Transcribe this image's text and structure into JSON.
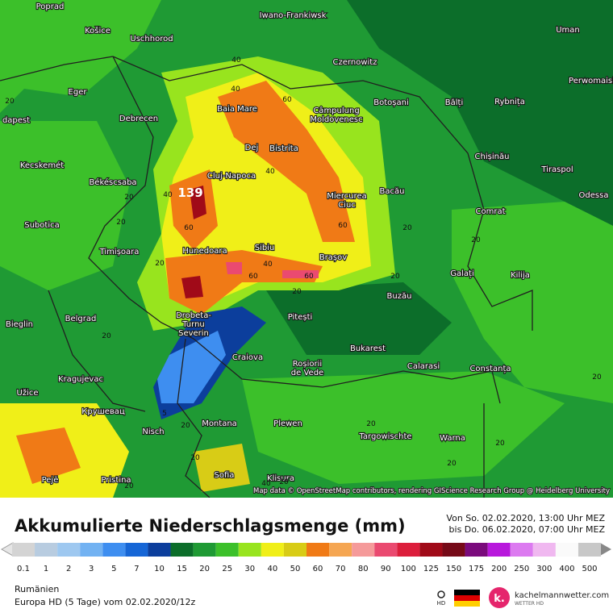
{
  "map": {
    "cities": [
      "Poprad",
      "Iwano-Frankiwsk",
      "Košice",
      "Uschhorod",
      "Uman",
      "Czernowitz",
      "Perwomaisk",
      "Eger",
      "Baia Mare",
      "Câmpulung",
      "Moldovenesc",
      "Botoșani",
      "Bălți",
      "Rybnița",
      "dapest",
      "Debrecen",
      "Chișinău",
      "Kecskemét",
      "Dej",
      "Bistrita",
      "Tiraspol",
      "Békéscsaba",
      "Cluj-Napoca",
      "Bacău",
      "Odessa",
      "Miercurea",
      "Ciuc",
      "Subotica",
      "Comrat",
      "Timișoara",
      "Sibiu",
      "Hunedoara",
      "Brașov",
      "Galați",
      "Kilija",
      "Buzău",
      "Bieglin",
      "Belgrad",
      "Drobeta-",
      "Turnu",
      "Severin",
      "Pitești",
      "Craiova",
      "Bukarest",
      "Roșiorii",
      "de Vede",
      "Calarasi",
      "Constanța",
      "Kragujevac",
      "Užice",
      "Крушевац",
      "Nisch",
      "Montana",
      "Plewen",
      "Targowischte",
      "Warna",
      "Pejë",
      "Pristina",
      "Sofia",
      "Klisura"
    ],
    "contour_labels": [
      "40",
      "40",
      "60",
      "20",
      "20",
      "40",
      "60",
      "139",
      "40",
      "60",
      "20",
      "40",
      "60",
      "60",
      "20",
      "20",
      "20",
      "20",
      "20",
      "20",
      "5",
      "20",
      "20",
      "20",
      "40",
      "20",
      "20",
      "20",
      "20",
      "20"
    ],
    "attribution": "Map data © OpenStreetMap contributors, rendering GIScience Research Group @ Heidelberg University"
  },
  "header": {
    "title": "Akkumulierte Niederschlagsmenge (mm)",
    "period_from": "Von So. 02.02.2020, 13:00 Uhr MEZ",
    "period_to": "bis Do. 06.02.2020, 07:00 Uhr MEZ"
  },
  "legend": {
    "levels": [
      0.1,
      1,
      2,
      3,
      5,
      7,
      10,
      15,
      20,
      25,
      30,
      40,
      50,
      60,
      70,
      80,
      90,
      100,
      125,
      150,
      175,
      200,
      250,
      300,
      400,
      500
    ],
    "colors": [
      "#d4d4d4",
      "#b8cce0",
      "#9ec8f0",
      "#72b2f2",
      "#3e8ef0",
      "#1666d6",
      "#0c3e9c",
      "#0c6e2a",
      "#1f9a34",
      "#3cc02a",
      "#98e41e",
      "#f0ef18",
      "#d8cc16",
      "#f07a16",
      "#f5a652",
      "#f59a9a",
      "#ea4a70",
      "#dc1e3c",
      "#a00a18",
      "#760a18",
      "#7a0a7c",
      "#b818dc",
      "#dc7af0",
      "#f0b8f0",
      "#fafafa",
      "#c8c8c8"
    ]
  },
  "footer": {
    "region": "Rumänien",
    "model": "Europa HD (5 Tage)  vom  02.02.2020/12z",
    "logo_hd": "HD",
    "logo_letter": "k.",
    "brand": "kachelmannwetter.com",
    "brand_sub": "WETTER HD"
  }
}
